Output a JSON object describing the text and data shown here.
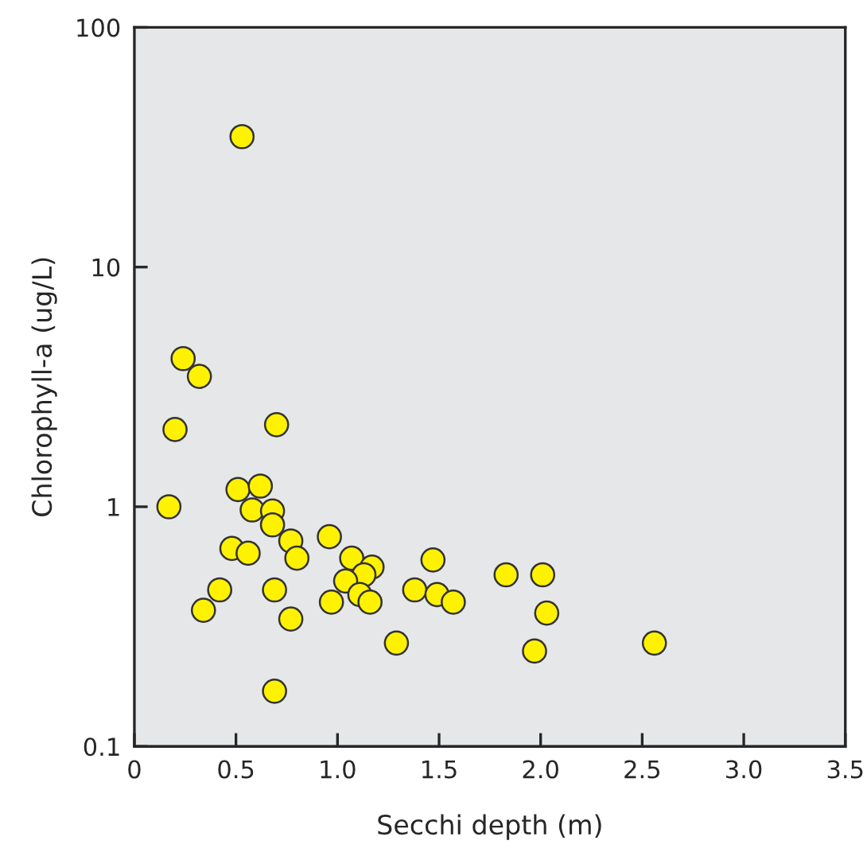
{
  "chart_data": {
    "type": "scatter",
    "xlabel": "Secchi depth (m)",
    "ylabel": "Chlorophyll-a (ug/L)",
    "log": "y",
    "grid": false,
    "marker": "circle",
    "xlim": [
      0,
      3.5
    ],
    "ylim": [
      0.1,
      100
    ],
    "xticks": [
      0,
      0.5,
      {
        "value": 1,
        "label": "1.0"
      },
      1.5,
      {
        "value": 2,
        "label": "2.0"
      },
      2.5,
      {
        "value": 3,
        "label": "3.0"
      },
      3.5
    ],
    "yticks": [
      0.1,
      1,
      10,
      100
    ],
    "series": [
      {
        "color": "#fff200",
        "x": [
          0.53,
          0.24,
          0.32,
          0.2,
          0.7,
          0.17,
          0.51,
          0.62,
          0.58,
          0.68,
          0.68,
          0.96,
          0.48,
          0.56,
          0.77,
          0.8,
          1.07,
          1.17,
          1.13,
          1.04,
          1.47,
          1.83,
          2.01,
          0.42,
          0.69,
          1.38,
          1.49,
          1.11,
          0.97,
          1.16,
          1.57,
          0.34,
          0.77,
          2.03,
          1.29,
          1.97,
          0.69,
          2.56
        ],
        "values": [
          35,
          4.15,
          3.5,
          2.1,
          2.2,
          1.0,
          1.18,
          1.22,
          0.97,
          0.96,
          0.84,
          0.75,
          0.67,
          0.64,
          0.72,
          0.61,
          0.61,
          0.56,
          0.52,
          0.49,
          0.6,
          0.52,
          0.52,
          0.45,
          0.45,
          0.45,
          0.43,
          0.43,
          0.4,
          0.4,
          0.4,
          0.37,
          0.34,
          0.36,
          0.27,
          0.25,
          0.17,
          0.27
        ]
      }
    ]
  }
}
